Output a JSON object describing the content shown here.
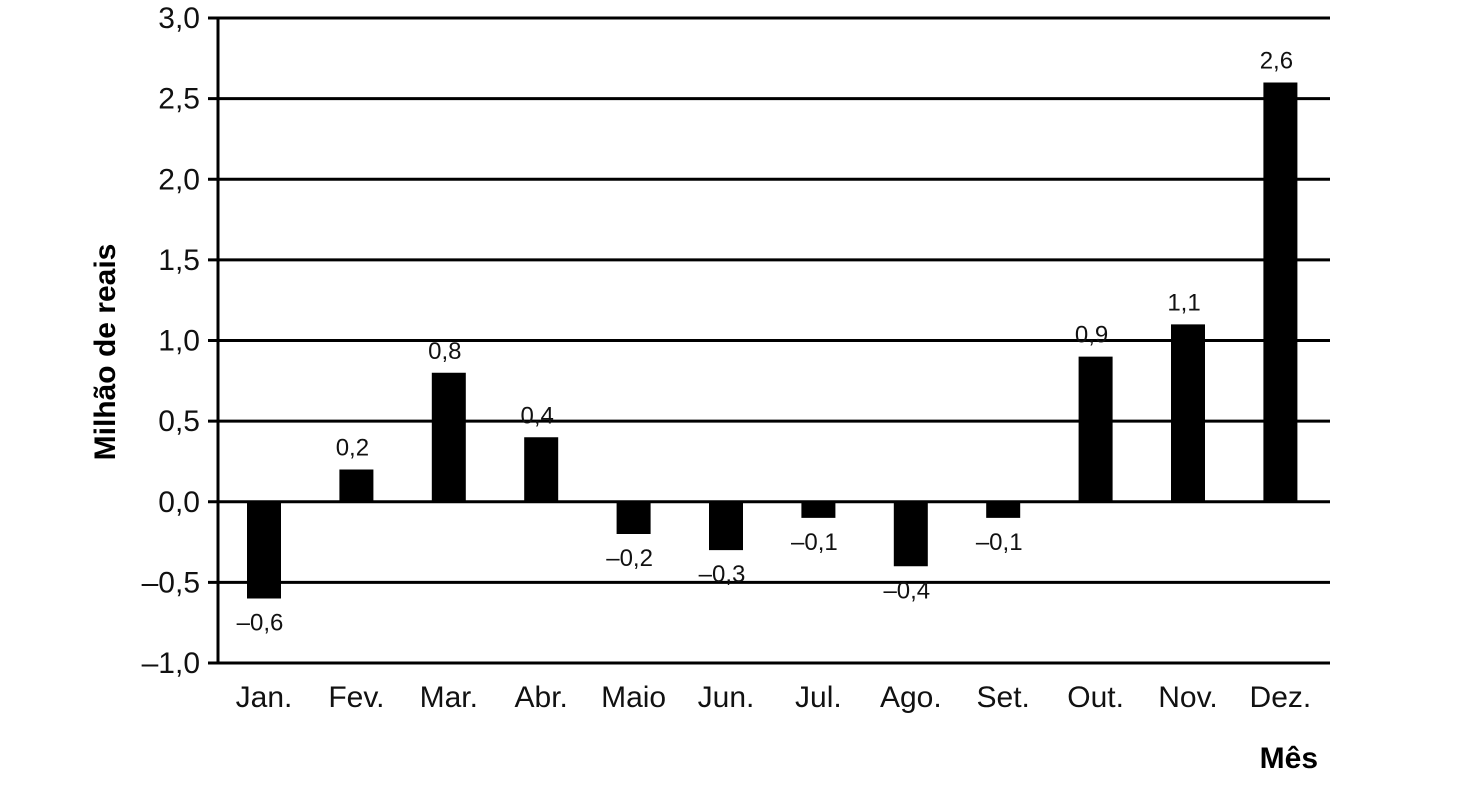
{
  "chart_data": {
    "type": "bar",
    "title": "",
    "xlabel": "Mês",
    "ylabel": "Milhão de reais",
    "ylim": [
      -1.0,
      3.0
    ],
    "yticks": [
      -1.0,
      -0.5,
      0.0,
      0.5,
      1.0,
      1.5,
      2.0,
      2.5,
      3.0
    ],
    "ytick_labels": [
      "–1,0",
      "–0,5",
      "0,0",
      "0,5",
      "1,0",
      "1,5",
      "2,0",
      "2,5",
      "3,0"
    ],
    "grid": "horizontal",
    "categories": [
      "Jan.",
      "Fev.",
      "Mar.",
      "Abr.",
      "Maio",
      "Jun.",
      "Jul.",
      "Ago.",
      "Set.",
      "Out.",
      "Nov.",
      "Dez."
    ],
    "values": [
      -0.6,
      0.2,
      0.8,
      0.4,
      -0.2,
      -0.3,
      -0.1,
      -0.4,
      -0.1,
      0.9,
      1.1,
      2.6
    ],
    "value_labels": [
      "–0,6",
      "0,2",
      "0,8",
      "0,4",
      "–0,2",
      "–0,3",
      "–0,1",
      "–0,4",
      "–0,1",
      "0,9",
      "1,1",
      "2,6"
    ],
    "bar_color": "#000000"
  }
}
